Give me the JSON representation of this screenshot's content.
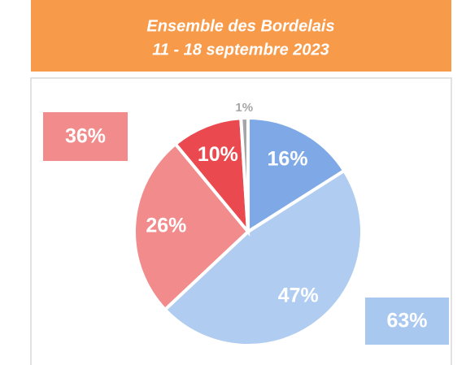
{
  "chart_data": {
    "type": "pie",
    "title": "Ensemble des Bordelais",
    "subtitle": "11 - 18 septembre  2023",
    "values": [
      16,
      47,
      26,
      10,
      1
    ],
    "value_labels": [
      "16%",
      "47%",
      "26%",
      "10%",
      "1%"
    ],
    "colors": [
      "#7ea9e6",
      "#b0cdf1",
      "#f28b8b",
      "#e9494f",
      "#a6a6a6"
    ],
    "annotations": [
      {
        "text": "36%",
        "color": "#f28b8b"
      },
      {
        "text": "63%",
        "color": "#a9c8f0"
      }
    ]
  }
}
